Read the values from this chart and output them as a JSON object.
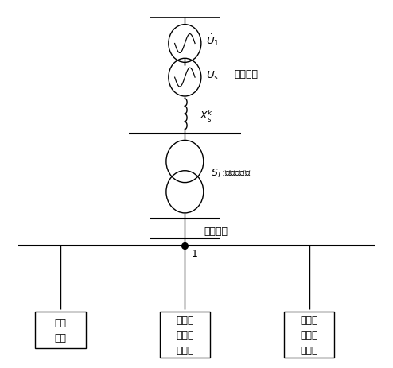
{
  "bg_color": "#ffffff",
  "line_color": "#000000",
  "figsize": [
    4.94,
    4.64
  ],
  "dpi": 100,
  "label_bgjb": "背景谐波",
  "label_line": "配电线路",
  "label_node": "1",
  "label_left": "线性\n负荷",
  "label_center": "电压源\n型非线\n性负荷",
  "label_right": "电流源\n型非线\n性负荷",
  "label_st": "S₀:配电变压器"
}
